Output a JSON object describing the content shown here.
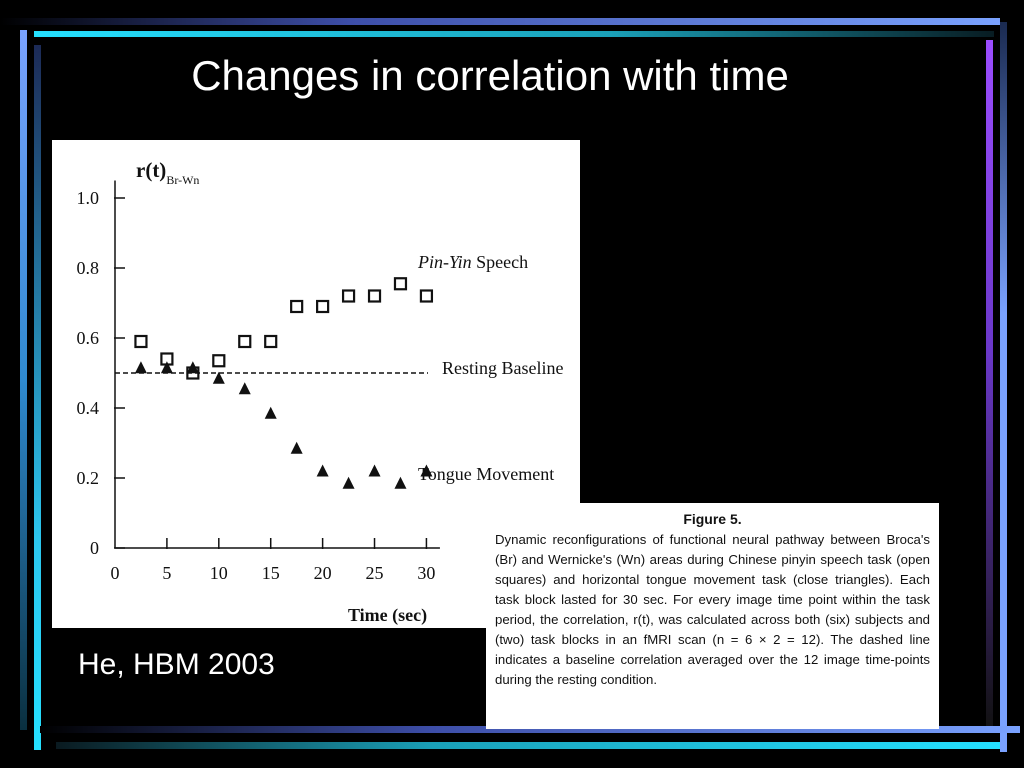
{
  "slide": {
    "title": "Changes in correlation with time",
    "citation": "He, HBM 2003"
  },
  "caption": {
    "heading": "Figure 5.",
    "text": "Dynamic reconfigurations of functional neural pathway between Broca's (Br) and Wernicke's (Wn) areas during Chinese pinyin speech task (open squares) and horizontal tongue movement task (close triangles). Each task block lasted for 30 sec. For every image time point within the task period, the correlation, r(t), was calculated across both (six) subjects and (two) task blocks in an fMRI scan (n = 6 × 2 = 12). The dashed line indicates a baseline correlation averaged over the 12 image time-points during the resting condition."
  },
  "colors": {
    "slide_background": "#000000",
    "chart_background": "#ffffff",
    "ink": "#111111",
    "accent_cyan": "#25e0ff",
    "accent_blue": "#7aa2ff",
    "accent_purple": "#9b4dff"
  },
  "chart_data": {
    "type": "scatter",
    "ylabel_main": "r(t)",
    "ylabel_sub": "Br-Wn",
    "xlabel": "Time (sec)",
    "xlim": [
      0,
      31.5
    ],
    "ylim": [
      0,
      1.1
    ],
    "x_ticks": [
      0,
      5,
      10,
      15,
      20,
      25,
      30
    ],
    "x_tick_labels": [
      "0",
      "5",
      "10",
      "15",
      "20",
      "25",
      "30"
    ],
    "y_ticks": [
      0,
      0.2,
      0.4,
      0.6,
      0.8,
      1.0
    ],
    "y_tick_labels": [
      "0",
      "0.2",
      "0.4",
      "0.6",
      "0.8",
      "1.0"
    ],
    "grid": false,
    "series": [
      {
        "name": "Pin-Yin Speech",
        "name_italic": "Pin-Yin",
        "name_rest": " Speech",
        "marker": "open-square",
        "x": [
          2.5,
          5,
          7.5,
          10,
          12.5,
          15,
          17.5,
          20,
          22.5,
          25,
          27.5,
          30
        ],
        "y": [
          0.59,
          0.54,
          0.5,
          0.535,
          0.59,
          0.59,
          0.69,
          0.69,
          0.72,
          0.72,
          0.755,
          0.72
        ]
      },
      {
        "name": "Tongue Movement",
        "marker": "filled-triangle",
        "x": [
          2.5,
          5,
          7.5,
          10,
          12.5,
          15,
          17.5,
          20,
          22.5,
          25,
          27.5,
          30
        ],
        "y": [
          0.515,
          0.515,
          0.515,
          0.485,
          0.455,
          0.385,
          0.285,
          0.22,
          0.185,
          0.22,
          0.185,
          0.22
        ]
      }
    ],
    "baseline": {
      "label": "Resting Baseline",
      "y": 0.5,
      "style": "dashed"
    }
  }
}
